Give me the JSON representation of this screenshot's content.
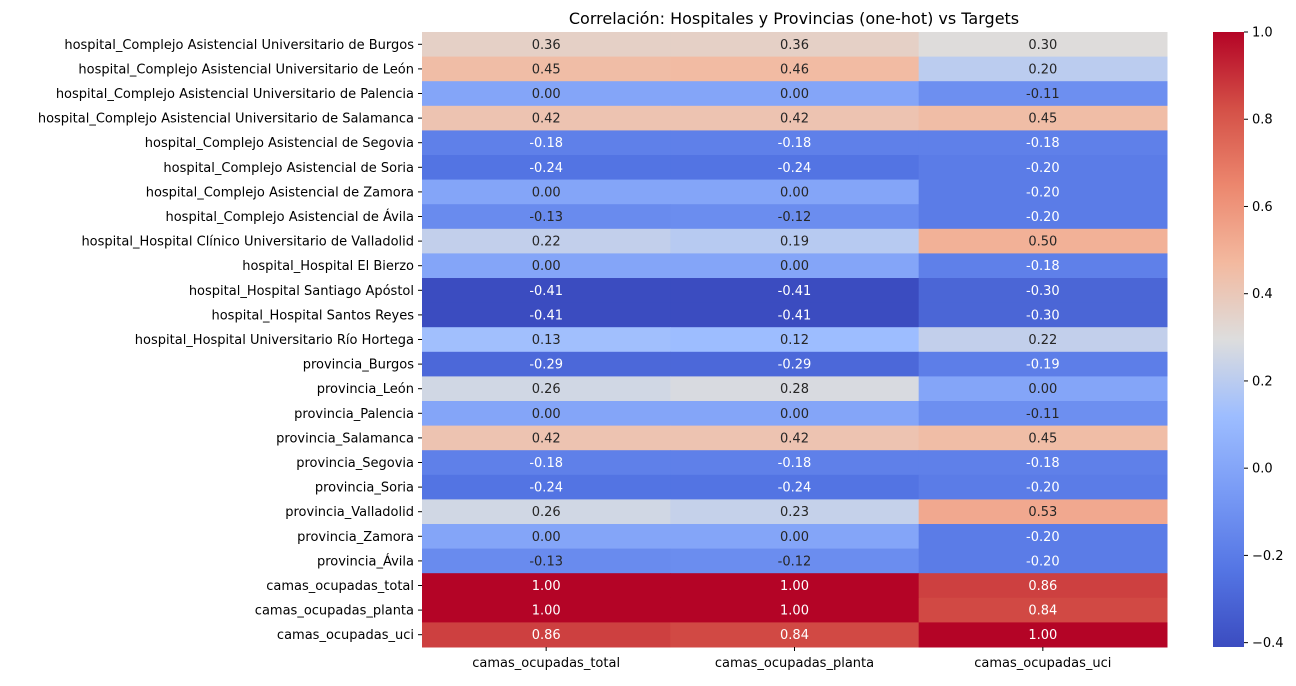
{
  "chart_data": {
    "type": "heatmap",
    "title": "Correlación: Hospitales y Provincias (one-hot) vs Targets",
    "columns": [
      "camas_ocupadas_total",
      "camas_ocupadas_planta",
      "camas_ocupadas_uci"
    ],
    "rows": [
      "hospital_Complejo Asistencial Universitario de Burgos",
      "hospital_Complejo Asistencial Universitario de León",
      "hospital_Complejo Asistencial Universitario de Palencia",
      "hospital_Complejo Asistencial Universitario de Salamanca",
      "hospital_Complejo Asistencial de Segovia",
      "hospital_Complejo Asistencial de Soria",
      "hospital_Complejo Asistencial de Zamora",
      "hospital_Complejo Asistencial de Ávila",
      "hospital_Hospital Clínico Universitario de Valladolid",
      "hospital_Hospital El Bierzo",
      "hospital_Hospital Santiago Apóstol",
      "hospital_Hospital Santos Reyes",
      "hospital_Hospital Universitario Río Hortega",
      "provincia_Burgos",
      "provincia_León",
      "provincia_Palencia",
      "provincia_Salamanca",
      "provincia_Segovia",
      "provincia_Soria",
      "provincia_Valladolid",
      "provincia_Zamora",
      "provincia_Ávila",
      "camas_ocupadas_total",
      "camas_ocupadas_planta",
      "camas_ocupadas_uci"
    ],
    "values": [
      [
        0.36,
        0.36,
        0.3
      ],
      [
        0.45,
        0.46,
        0.2
      ],
      [
        0.0,
        0.0,
        -0.11
      ],
      [
        0.42,
        0.42,
        0.45
      ],
      [
        -0.18,
        -0.18,
        -0.18
      ],
      [
        -0.24,
        -0.24,
        -0.2
      ],
      [
        0.0,
        0.0,
        -0.2
      ],
      [
        -0.13,
        -0.12,
        -0.2
      ],
      [
        0.22,
        0.19,
        0.5
      ],
      [
        0.0,
        0.0,
        -0.18
      ],
      [
        -0.41,
        -0.41,
        -0.3
      ],
      [
        -0.41,
        -0.41,
        -0.3
      ],
      [
        0.13,
        0.12,
        0.22
      ],
      [
        -0.29,
        -0.29,
        -0.19
      ],
      [
        0.26,
        0.28,
        0.0
      ],
      [
        0.0,
        0.0,
        -0.11
      ],
      [
        0.42,
        0.42,
        0.45
      ],
      [
        -0.18,
        -0.18,
        -0.18
      ],
      [
        -0.24,
        -0.24,
        -0.2
      ],
      [
        0.26,
        0.23,
        0.53
      ],
      [
        0.0,
        0.0,
        -0.2
      ],
      [
        -0.13,
        -0.12,
        -0.2
      ],
      [
        1.0,
        1.0,
        0.86
      ],
      [
        1.0,
        1.0,
        0.84
      ],
      [
        0.86,
        0.84,
        1.0
      ]
    ],
    "colormap": "coolwarm",
    "vmin": -0.41,
    "vmax": 1.0,
    "colorbar_ticks": [
      "1.0",
      "0.8",
      "0.6",
      "0.4",
      "0.2",
      "0.0",
      "−0.2",
      "−0.4"
    ],
    "colorbar_tick_values": [
      1.0,
      0.8,
      0.6,
      0.4,
      0.2,
      0.0,
      -0.2,
      -0.4
    ]
  }
}
